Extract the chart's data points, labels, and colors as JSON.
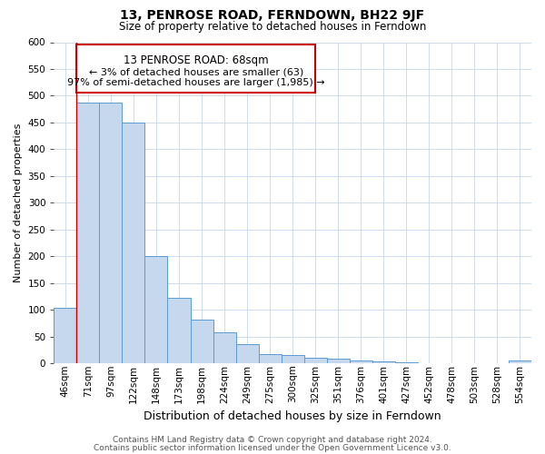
{
  "title": "13, PENROSE ROAD, FERNDOWN, BH22 9JF",
  "subtitle": "Size of property relative to detached houses in Ferndown",
  "xlabel": "Distribution of detached houses by size in Ferndown",
  "ylabel": "Number of detached properties",
  "footer_line1": "Contains HM Land Registry data © Crown copyright and database right 2024.",
  "footer_line2": "Contains public sector information licensed under the Open Government Licence v3.0.",
  "bin_labels": [
    "46sqm",
    "71sqm",
    "97sqm",
    "122sqm",
    "148sqm",
    "173sqm",
    "198sqm",
    "224sqm",
    "249sqm",
    "275sqm",
    "300sqm",
    "325sqm",
    "351sqm",
    "376sqm",
    "401sqm",
    "427sqm",
    "452sqm",
    "478sqm",
    "503sqm",
    "528sqm",
    "554sqm"
  ],
  "bar_values": [
    103,
    487,
    487,
    450,
    200,
    122,
    82,
    58,
    36,
    17,
    15,
    10,
    8,
    5,
    3,
    2,
    1,
    1,
    1,
    1,
    5
  ],
  "bar_color": "#c5d8ed",
  "bar_edge_color": "#5b9bd5",
  "marker_bin_index": 1,
  "annotation_title": "13 PENROSE ROAD: 68sqm",
  "annotation_line1": "← 3% of detached houses are smaller (63)",
  "annotation_line2": "97% of semi-detached houses are larger (1,985) →",
  "annotation_box_color": "#ffffff",
  "annotation_border_color": "#cc0000",
  "marker_line_color": "#cc0000",
  "ylim": [
    0,
    600
  ],
  "yticks": [
    0,
    50,
    100,
    150,
    200,
    250,
    300,
    350,
    400,
    450,
    500,
    550,
    600
  ],
  "background_color": "#ffffff",
  "grid_color": "#c8d8e8",
  "title_fontsize": 10,
  "subtitle_fontsize": 8.5,
  "xlabel_fontsize": 9,
  "ylabel_fontsize": 8,
  "tick_fontsize": 7.5,
  "footer_fontsize": 6.5,
  "ann_title_fontsize": 8.5,
  "ann_text_fontsize": 8
}
